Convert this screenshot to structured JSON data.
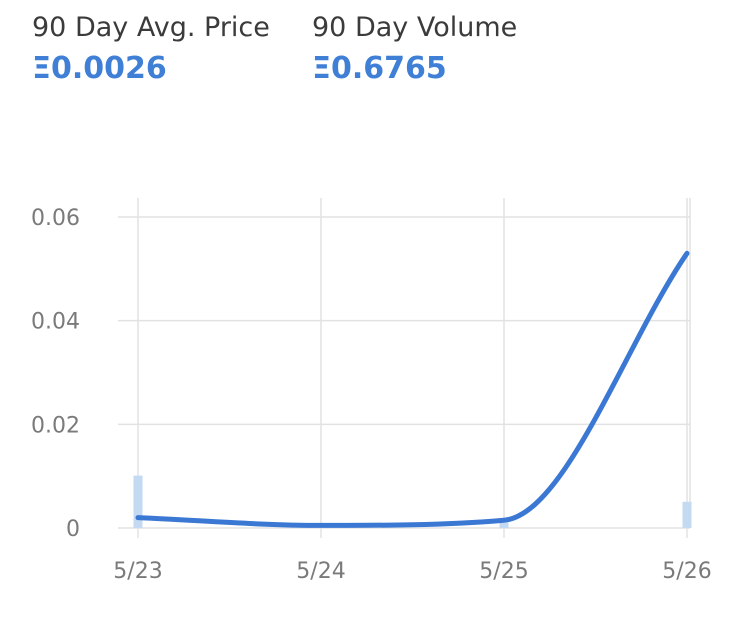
{
  "stats": {
    "avg_price": {
      "label": "90 Day Avg. Price",
      "value": "Ξ0.0026"
    },
    "volume": {
      "label": "90 Day Volume",
      "value": "Ξ0.6765"
    }
  },
  "colors": {
    "accent": "#3f7fd6",
    "line": "#3a78d4",
    "volume_bar": "#c4d9f2",
    "grid": "#e2e2e2",
    "tick_text": "#7a7a7a"
  },
  "chart_data": {
    "type": "line",
    "title": "",
    "xlabel": "",
    "ylabel": "",
    "categories": [
      "5/23",
      "5/24",
      "5/25",
      "5/26"
    ],
    "ylim": [
      0,
      0.06
    ],
    "yticks": [
      "0",
      "0.02",
      "0.04",
      "0.06"
    ],
    "grid": true,
    "series": [
      {
        "values": [
          0.002,
          0.0005,
          0.0015,
          0.053
        ]
      }
    ],
    "volume_bars": [
      0.01,
      0,
      0.001,
      0.005
    ]
  }
}
